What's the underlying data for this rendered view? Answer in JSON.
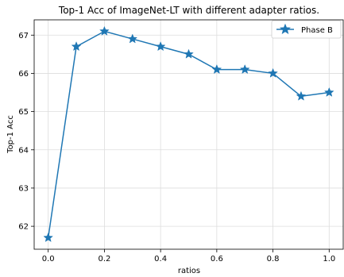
{
  "chart_data": {
    "type": "line",
    "title": "Top-1 Acc of ImageNet-LT with different adapter ratios.",
    "xlabel": "ratios",
    "ylabel": "Top-1 Acc",
    "xlim": [
      -0.05,
      1.05
    ],
    "ylim": [
      61.4,
      67.4
    ],
    "x_ticks": [
      0.0,
      0.2,
      0.4,
      0.6,
      0.8,
      1.0
    ],
    "x_tick_labels": [
      "0.0",
      "0.2",
      "0.4",
      "0.6",
      "0.8",
      "1.0"
    ],
    "y_ticks": [
      62,
      63,
      64,
      65,
      66,
      67
    ],
    "y_tick_labels": [
      "62",
      "63",
      "64",
      "65",
      "66",
      "67"
    ],
    "grid": true,
    "legend_position": "top-right",
    "series": [
      {
        "name": "Phase B",
        "color": "#1f77b4",
        "marker": "star",
        "x": [
          0.0,
          0.1,
          0.2,
          0.3,
          0.4,
          0.5,
          0.6,
          0.7,
          0.8,
          0.9,
          1.0
        ],
        "y": [
          61.7,
          66.7,
          67.1,
          66.9,
          66.7,
          66.5,
          66.1,
          66.1,
          66.0,
          65.4,
          65.5
        ]
      }
    ]
  }
}
